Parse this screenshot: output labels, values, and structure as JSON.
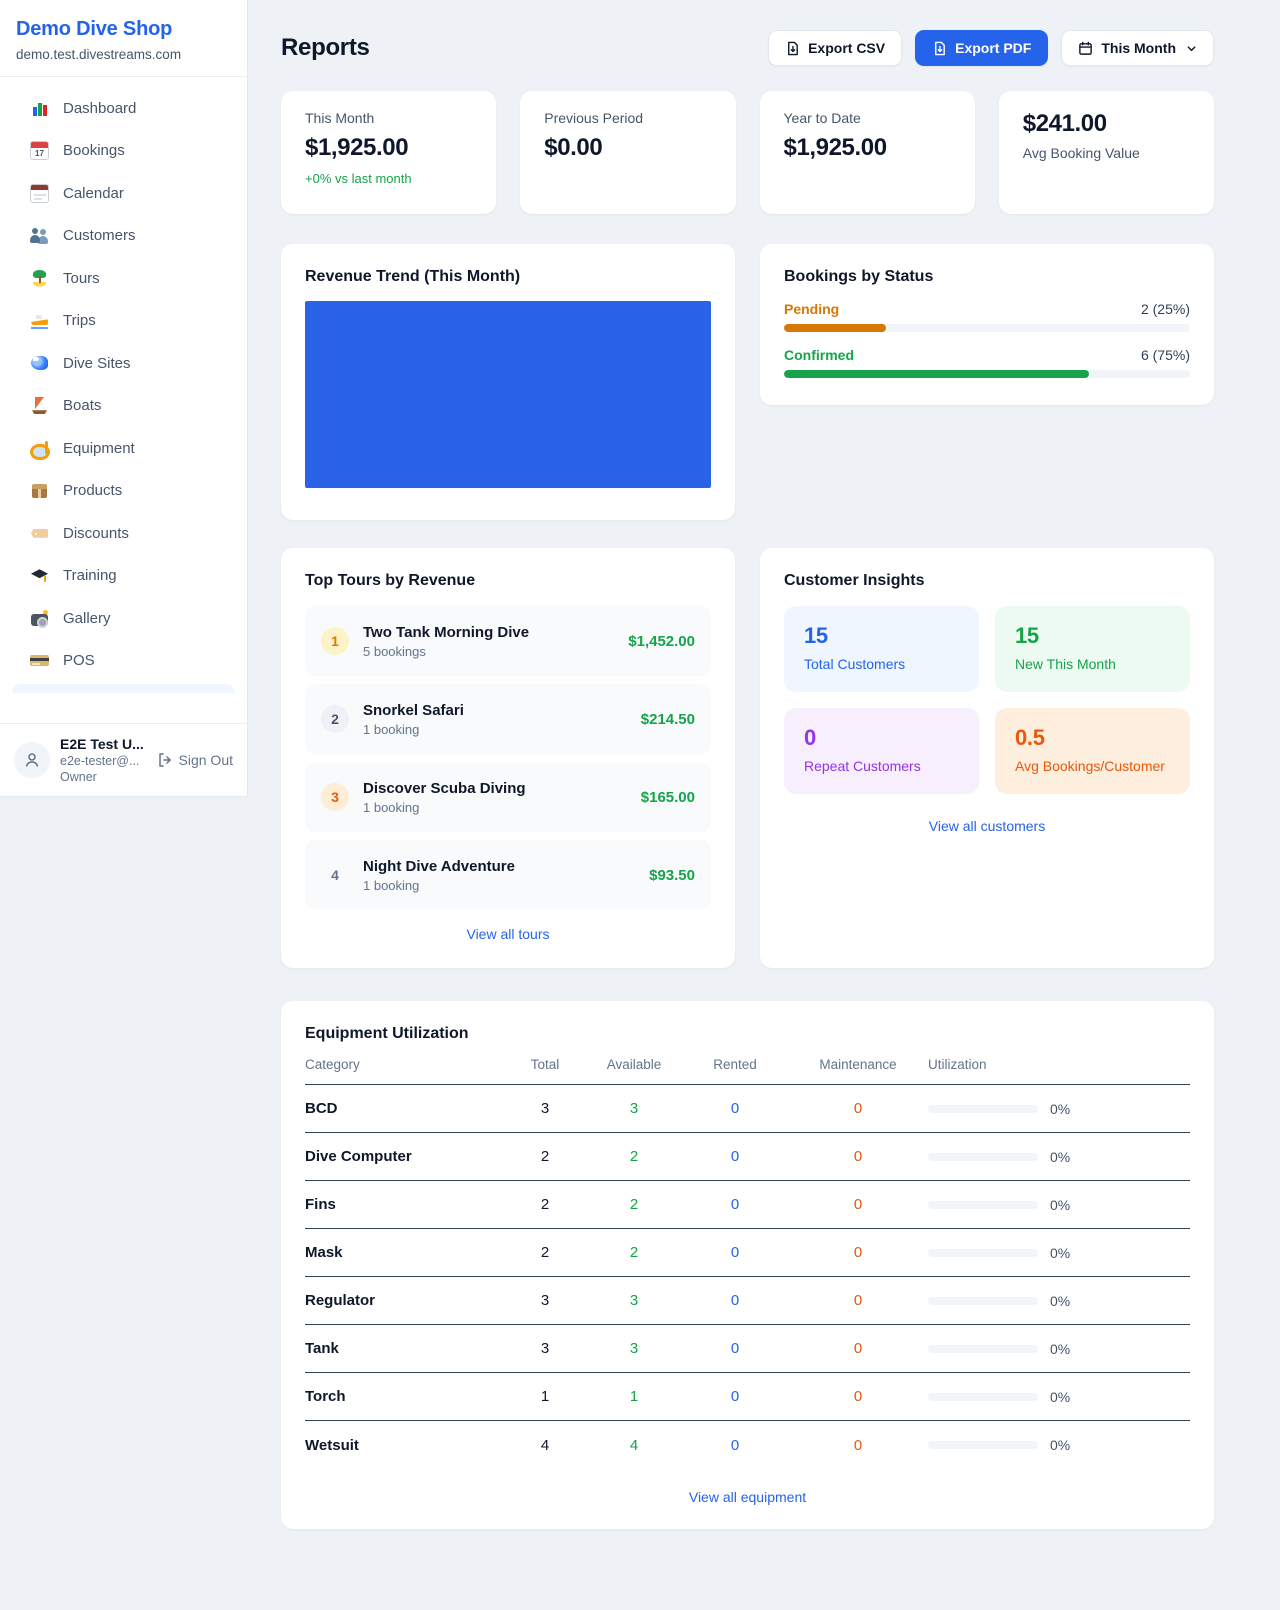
{
  "colors": {
    "accent": "#2563eb",
    "chart_blue": "#2b63e8",
    "pending": "#d97706",
    "confirmed": "#16a34a"
  },
  "sidebar": {
    "shop_name": "Demo Dive Shop",
    "shop_domain": "demo.test.divestreams.com",
    "items": [
      {
        "icon": "dashboard-icon",
        "label": "Dashboard"
      },
      {
        "icon": "bookings-icon",
        "label": "Bookings"
      },
      {
        "icon": "calendar-icon",
        "label": "Calendar"
      },
      {
        "icon": "customers-icon",
        "label": "Customers"
      },
      {
        "icon": "tours-icon",
        "label": "Tours"
      },
      {
        "icon": "trips-icon",
        "label": "Trips"
      },
      {
        "icon": "dive-sites-icon",
        "label": "Dive Sites"
      },
      {
        "icon": "boats-icon",
        "label": "Boats"
      },
      {
        "icon": "equipment-icon",
        "label": "Equipment"
      },
      {
        "icon": "products-icon",
        "label": "Products"
      },
      {
        "icon": "discounts-icon",
        "label": "Discounts"
      },
      {
        "icon": "training-icon",
        "label": "Training"
      },
      {
        "icon": "gallery-icon",
        "label": "Gallery"
      },
      {
        "icon": "pos-icon",
        "label": "POS"
      }
    ],
    "user": {
      "name": "E2E Test U...",
      "email": "e2e-tester@...",
      "role": "Owner",
      "signout_label": "Sign Out"
    }
  },
  "header": {
    "title": "Reports",
    "export_csv": "Export CSV",
    "export_pdf": "Export PDF",
    "period": "This Month"
  },
  "stats": [
    {
      "label": "This Month",
      "value": "$1,925.00",
      "note": "+0% vs last month"
    },
    {
      "label": "Previous Period",
      "value": "$0.00"
    },
    {
      "label": "Year to Date",
      "value": "$1,925.00"
    },
    {
      "label": "Avg Booking Value",
      "value": "$241.00",
      "layout": "value-first"
    }
  ],
  "revenue_trend": {
    "title": "Revenue Trend (This Month)",
    "bar_color": "#2b63e8"
  },
  "bookings_by_status": {
    "title": "Bookings by Status",
    "rows": [
      {
        "label": "Pending",
        "count_label": "2 (25%)",
        "count": 2,
        "percent": 25,
        "width": "25%",
        "color": "#d97706"
      },
      {
        "label": "Confirmed",
        "count_label": "6 (75%)",
        "count": 6,
        "percent": 75,
        "width": "75%",
        "color": "#16a34a"
      }
    ]
  },
  "top_tours": {
    "title": "Top Tours by Revenue",
    "rows": [
      {
        "rank": "1",
        "badge_class": "rank-1",
        "name": "Two Tank Morning Dive",
        "bookings": "5 bookings",
        "revenue": "$1,452.00"
      },
      {
        "rank": "2",
        "badge_class": "rank-2",
        "name": "Snorkel Safari",
        "bookings": "1 booking",
        "revenue": "$214.50"
      },
      {
        "rank": "3",
        "badge_class": "rank-3",
        "name": "Discover Scuba Diving",
        "bookings": "1 booking",
        "revenue": "$165.00"
      },
      {
        "rank": "4",
        "badge_class": "rank-4",
        "name": "Night Dive Adventure",
        "bookings": "1 booking",
        "revenue": "$93.50"
      }
    ],
    "link": "View all tours"
  },
  "customer_insights": {
    "title": "Customer Insights",
    "tiles": [
      {
        "value": "15",
        "label": "Total Customers",
        "scheme": "tile-blue"
      },
      {
        "value": "15",
        "label": "New This Month",
        "scheme": "tile-green"
      },
      {
        "value": "0",
        "label": "Repeat Customers",
        "scheme": "tile-purple"
      },
      {
        "value": "0.5",
        "label": "Avg Bookings/Customer",
        "scheme": "tile-orange"
      }
    ],
    "link": "View all customers"
  },
  "equipment": {
    "title": "Equipment Utilization",
    "columns": [
      "Category",
      "Total",
      "Available",
      "Rented",
      "Maintenance",
      "Utilization"
    ],
    "rows": [
      {
        "category": "BCD",
        "total": "3",
        "available": "3",
        "rented": "0",
        "maintenance": "0",
        "utilization": "0%",
        "bar_width": "0%"
      },
      {
        "category": "Dive Computer",
        "total": "2",
        "available": "2",
        "rented": "0",
        "maintenance": "0",
        "utilization": "0%",
        "bar_width": "0%"
      },
      {
        "category": "Fins",
        "total": "2",
        "available": "2",
        "rented": "0",
        "maintenance": "0",
        "utilization": "0%",
        "bar_width": "0%"
      },
      {
        "category": "Mask",
        "total": "2",
        "available": "2",
        "rented": "0",
        "maintenance": "0",
        "utilization": "0%",
        "bar_width": "0%"
      },
      {
        "category": "Regulator",
        "total": "3",
        "available": "3",
        "rented": "0",
        "maintenance": "0",
        "utilization": "0%",
        "bar_width": "0%"
      },
      {
        "category": "Tank",
        "total": "3",
        "available": "3",
        "rented": "0",
        "maintenance": "0",
        "utilization": "0%",
        "bar_width": "0%"
      },
      {
        "category": "Torch",
        "total": "1",
        "available": "1",
        "rented": "0",
        "maintenance": "0",
        "utilization": "0%",
        "bar_width": "0%"
      },
      {
        "category": "Wetsuit",
        "total": "4",
        "available": "4",
        "rented": "0",
        "maintenance": "0",
        "utilization": "0%",
        "bar_width": "0%"
      }
    ],
    "link": "View all equipment"
  }
}
